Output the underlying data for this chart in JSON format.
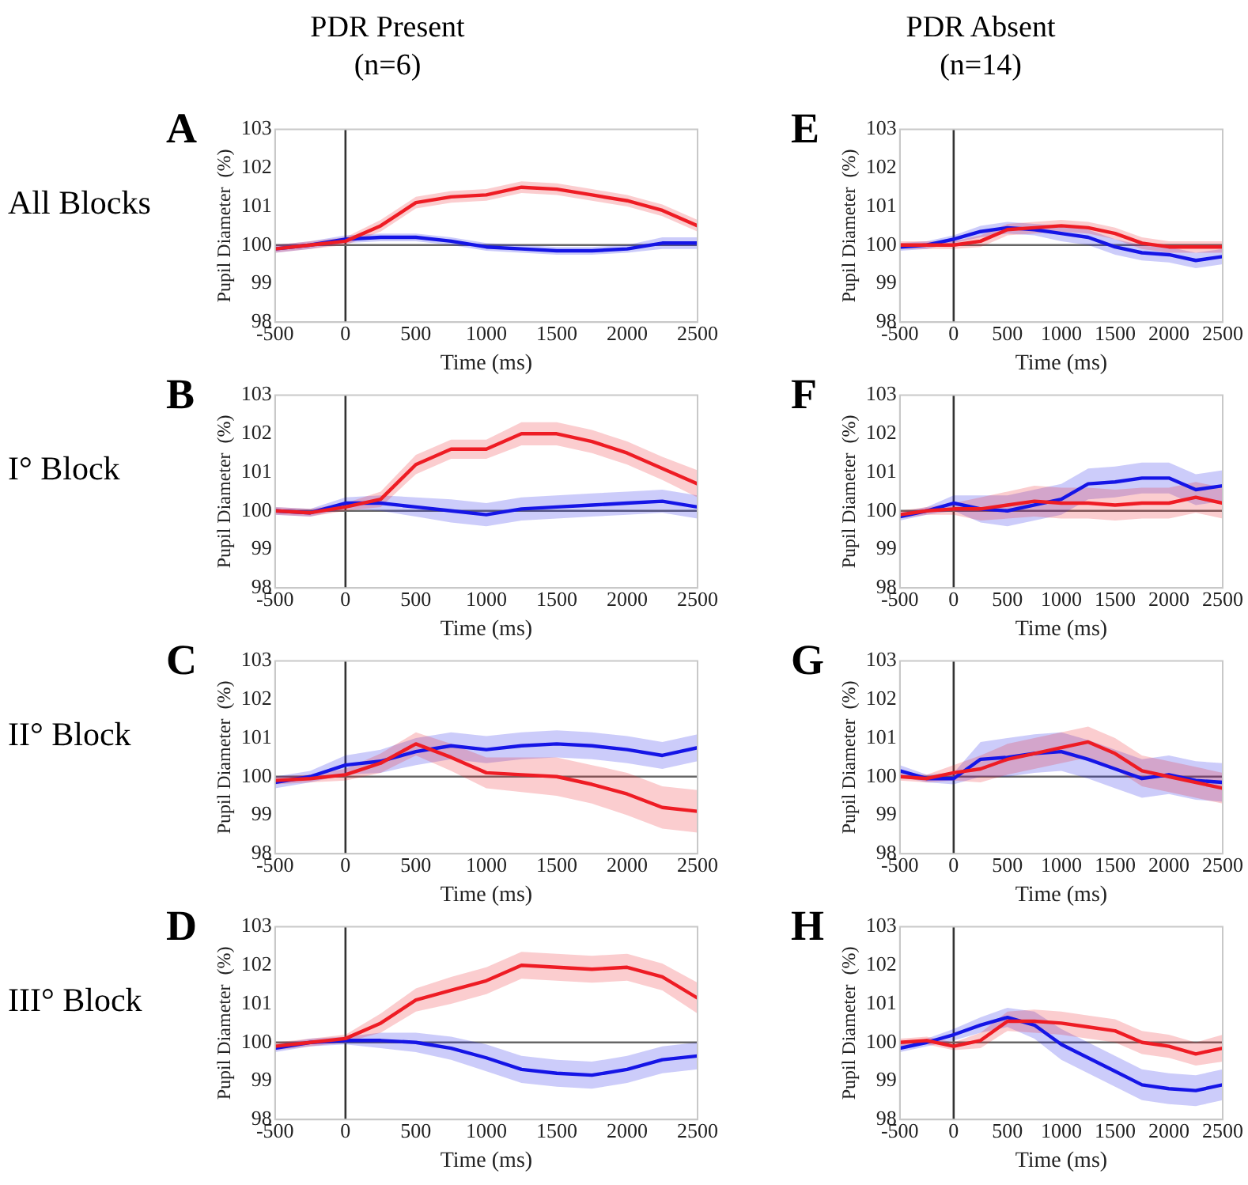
{
  "chart_data": [
    {
      "type": "line",
      "title": "PDR Present (n=6)",
      "annotations": [
        "A",
        "All Blocks"
      ],
      "xlabel": "Time (ms)",
      "ylabel": "Pupil Diameter  (%)",
      "xlim": [
        -500,
        2500
      ],
      "xticks": [
        -500,
        0,
        500,
        1000,
        1500,
        2000,
        2500
      ],
      "ylim": [
        98,
        103
      ],
      "yticks": [
        98,
        99,
        100,
        101,
        102,
        103
      ],
      "grid": false,
      "line_style": "solid",
      "marker": "none",
      "ref_lines": [
        {
          "axis": "x",
          "value": 0,
          "color": "#333333"
        },
        {
          "axis": "y",
          "value": 100,
          "color": "#666666"
        }
      ],
      "x": [
        -500,
        -250,
        0,
        250,
        500,
        750,
        1000,
        1250,
        1500,
        1750,
        2000,
        2250,
        2500
      ],
      "series": [
        {
          "color": "#ee1c24",
          "values": [
            99.9,
            100.0,
            100.1,
            100.5,
            101.1,
            101.25,
            101.3,
            101.5,
            101.45,
            101.3,
            101.15,
            100.9,
            100.5
          ],
          "lower": [
            99.8,
            99.9,
            100.0,
            100.35,
            100.95,
            101.1,
            101.15,
            101.35,
            101.3,
            101.15,
            101.0,
            100.75,
            100.35
          ],
          "upper": [
            100.0,
            100.1,
            100.2,
            100.65,
            101.25,
            101.4,
            101.45,
            101.65,
            101.6,
            101.45,
            101.3,
            101.05,
            100.65
          ]
        },
        {
          "color": "#1515e6",
          "values": [
            99.9,
            100.0,
            100.15,
            100.2,
            100.2,
            100.1,
            99.95,
            99.9,
            99.85,
            99.85,
            99.9,
            100.05,
            100.05
          ],
          "lower": [
            99.8,
            99.9,
            100.05,
            100.1,
            100.1,
            100.0,
            99.85,
            99.8,
            99.75,
            99.75,
            99.8,
            99.9,
            99.9
          ],
          "upper": [
            100.0,
            100.1,
            100.25,
            100.3,
            100.3,
            100.2,
            100.05,
            100.0,
            99.95,
            99.95,
            100.0,
            100.2,
            100.2
          ]
        }
      ]
    },
    {
      "type": "line",
      "title": "PDR Absent (n=14)",
      "annotations": [
        "E"
      ],
      "xlabel": "Time (ms)",
      "ylabel": "Pupil Diameter  (%)",
      "xlim": [
        -500,
        2500
      ],
      "xticks": [
        -500,
        0,
        500,
        1000,
        1500,
        2000,
        2500
      ],
      "ylim": [
        98,
        103
      ],
      "yticks": [
        98,
        99,
        100,
        101,
        102,
        103
      ],
      "grid": false,
      "line_style": "solid",
      "marker": "none",
      "ref_lines": [
        {
          "axis": "x",
          "value": 0,
          "color": "#333333"
        },
        {
          "axis": "y",
          "value": 100,
          "color": "#666666"
        }
      ],
      "x": [
        -500,
        -250,
        0,
        250,
        500,
        750,
        1000,
        1250,
        1500,
        1750,
        2000,
        2250,
        2500
      ],
      "series": [
        {
          "color": "#ee1c24",
          "values": [
            100.0,
            100.0,
            100.0,
            100.1,
            100.4,
            100.45,
            100.5,
            100.45,
            100.3,
            100.05,
            99.95,
            99.95,
            99.95
          ],
          "lower": [
            99.9,
            99.9,
            99.9,
            99.95,
            100.25,
            100.3,
            100.35,
            100.3,
            100.15,
            99.9,
            99.8,
            99.8,
            99.8
          ],
          "upper": [
            100.1,
            100.1,
            100.1,
            100.25,
            100.55,
            100.6,
            100.65,
            100.6,
            100.45,
            100.2,
            100.1,
            100.1,
            100.1
          ]
        },
        {
          "color": "#1515e6",
          "values": [
            99.95,
            100.0,
            100.15,
            100.35,
            100.45,
            100.4,
            100.3,
            100.2,
            99.95,
            99.8,
            99.75,
            99.6,
            99.7
          ],
          "lower": [
            99.85,
            99.9,
            100.05,
            100.2,
            100.3,
            100.25,
            100.1,
            100.0,
            99.75,
            99.6,
            99.55,
            99.4,
            99.5
          ],
          "upper": [
            100.05,
            100.1,
            100.25,
            100.5,
            100.6,
            100.55,
            100.5,
            100.4,
            100.15,
            100.0,
            99.95,
            99.8,
            99.9
          ]
        }
      ]
    },
    {
      "type": "line",
      "annotations": [
        "B",
        "I° Block"
      ],
      "xlabel": "Time (ms)",
      "ylabel": "Pupil Diameter  (%)",
      "xlim": [
        -500,
        2500
      ],
      "xticks": [
        -500,
        0,
        500,
        1000,
        1500,
        2000,
        2500
      ],
      "ylim": [
        98,
        103
      ],
      "yticks": [
        98,
        99,
        100,
        101,
        102,
        103
      ],
      "grid": false,
      "line_style": "solid",
      "marker": "none",
      "ref_lines": [
        {
          "axis": "x",
          "value": 0,
          "color": "#333333"
        },
        {
          "axis": "y",
          "value": 100,
          "color": "#666666"
        }
      ],
      "x": [
        -500,
        -250,
        0,
        250,
        500,
        750,
        1000,
        1250,
        1500,
        1750,
        2000,
        2250,
        2500
      ],
      "series": [
        {
          "color": "#ee1c24",
          "values": [
            100.0,
            99.95,
            100.1,
            100.3,
            101.2,
            101.6,
            101.6,
            102.0,
            102.0,
            101.8,
            101.5,
            101.1,
            100.7
          ],
          "lower": [
            99.9,
            99.85,
            100.0,
            100.1,
            100.95,
            101.35,
            101.35,
            101.7,
            101.7,
            101.5,
            101.2,
            100.8,
            100.35
          ],
          "upper": [
            100.1,
            100.05,
            100.2,
            100.5,
            101.45,
            101.85,
            101.85,
            102.3,
            102.3,
            102.1,
            101.8,
            101.4,
            101.05
          ]
        },
        {
          "color": "#1515e6",
          "values": [
            100.0,
            99.95,
            100.2,
            100.2,
            100.1,
            100.0,
            99.9,
            100.05,
            100.1,
            100.15,
            100.2,
            100.25,
            100.1
          ],
          "lower": [
            99.9,
            99.85,
            100.05,
            100.0,
            99.85,
            99.7,
            99.6,
            99.75,
            99.8,
            99.85,
            99.9,
            99.95,
            99.8
          ],
          "upper": [
            100.1,
            100.05,
            100.35,
            100.4,
            100.35,
            100.3,
            100.2,
            100.35,
            100.4,
            100.45,
            100.5,
            100.55,
            100.4
          ]
        }
      ]
    },
    {
      "type": "line",
      "annotations": [
        "F"
      ],
      "xlabel": "Time (ms)",
      "ylabel": "Pupil Diameter  (%)",
      "xlim": [
        -500,
        2500
      ],
      "xticks": [
        -500,
        0,
        500,
        1000,
        1500,
        2000,
        2500
      ],
      "ylim": [
        98,
        103
      ],
      "yticks": [
        98,
        99,
        100,
        101,
        102,
        103
      ],
      "grid": false,
      "line_style": "solid",
      "marker": "none",
      "ref_lines": [
        {
          "axis": "x",
          "value": 0,
          "color": "#333333"
        },
        {
          "axis": "y",
          "value": 100,
          "color": "#666666"
        }
      ],
      "x": [
        -500,
        -250,
        0,
        250,
        500,
        750,
        1000,
        1250,
        1500,
        1750,
        2000,
        2250,
        2500
      ],
      "series": [
        {
          "color": "#ee1c24",
          "values": [
            99.9,
            100.0,
            100.05,
            100.05,
            100.15,
            100.25,
            100.2,
            100.2,
            100.15,
            100.2,
            100.2,
            100.35,
            100.2
          ],
          "lower": [
            99.8,
            99.9,
            99.9,
            99.75,
            99.8,
            99.85,
            99.8,
            99.8,
            99.75,
            99.8,
            99.8,
            99.95,
            99.8
          ],
          "upper": [
            100.0,
            100.1,
            100.2,
            100.35,
            100.5,
            100.65,
            100.6,
            100.6,
            100.55,
            100.6,
            100.6,
            100.75,
            100.6
          ]
        },
        {
          "color": "#1515e6",
          "values": [
            99.85,
            100.0,
            100.2,
            100.05,
            100.0,
            100.15,
            100.3,
            100.7,
            100.75,
            100.85,
            100.85,
            100.55,
            100.65
          ],
          "lower": [
            99.75,
            99.9,
            100.0,
            99.7,
            99.6,
            99.75,
            99.9,
            100.3,
            100.35,
            100.45,
            100.45,
            100.15,
            100.25
          ],
          "upper": [
            99.95,
            100.1,
            100.4,
            100.4,
            100.4,
            100.55,
            100.7,
            101.1,
            101.15,
            101.25,
            101.25,
            100.95,
            101.05
          ]
        }
      ]
    },
    {
      "type": "line",
      "annotations": [
        "C",
        "II° Block"
      ],
      "xlabel": "Time (ms)",
      "ylabel": "Pupil Diameter  (%)",
      "xlim": [
        -500,
        2500
      ],
      "xticks": [
        -500,
        0,
        500,
        1000,
        1500,
        2000,
        2500
      ],
      "ylim": [
        98,
        103
      ],
      "yticks": [
        98,
        99,
        100,
        101,
        102,
        103
      ],
      "grid": false,
      "line_style": "solid",
      "marker": "none",
      "ref_lines": [
        {
          "axis": "x",
          "value": 0,
          "color": "#333333"
        },
        {
          "axis": "y",
          "value": 100,
          "color": "#666666"
        }
      ],
      "x": [
        -500,
        -250,
        0,
        250,
        500,
        750,
        1000,
        1250,
        1500,
        1750,
        2000,
        2250,
        2500
      ],
      "series": [
        {
          "color": "#ee1c24",
          "values": [
            99.9,
            99.95,
            100.05,
            100.35,
            100.85,
            100.5,
            100.1,
            100.05,
            100.0,
            99.8,
            99.55,
            99.2,
            99.1
          ],
          "lower": [
            99.8,
            99.85,
            99.9,
            100.1,
            100.55,
            100.15,
            99.7,
            99.6,
            99.5,
            99.3,
            99.0,
            98.65,
            98.55
          ],
          "upper": [
            100.0,
            100.05,
            100.2,
            100.6,
            101.15,
            100.85,
            100.5,
            100.5,
            100.5,
            100.3,
            100.1,
            99.75,
            99.65
          ]
        },
        {
          "color": "#1515e6",
          "values": [
            99.85,
            100.0,
            100.3,
            100.4,
            100.65,
            100.8,
            100.7,
            100.8,
            100.85,
            100.8,
            100.7,
            100.55,
            100.75
          ],
          "lower": [
            99.7,
            99.85,
            100.05,
            100.1,
            100.3,
            100.45,
            100.35,
            100.45,
            100.5,
            100.45,
            100.35,
            100.2,
            100.4
          ],
          "upper": [
            100.0,
            100.15,
            100.55,
            100.7,
            101.0,
            101.15,
            101.05,
            101.15,
            101.2,
            101.15,
            101.05,
            100.9,
            101.1
          ]
        }
      ]
    },
    {
      "type": "line",
      "annotations": [
        "G"
      ],
      "xlabel": "Time (ms)",
      "ylabel": "Pupil Diameter  (%)",
      "xlim": [
        -500,
        2500
      ],
      "xticks": [
        -500,
        0,
        500,
        1000,
        1500,
        2000,
        2500
      ],
      "ylim": [
        98,
        103
      ],
      "yticks": [
        98,
        99,
        100,
        101,
        102,
        103
      ],
      "grid": false,
      "line_style": "solid",
      "marker": "none",
      "ref_lines": [
        {
          "axis": "x",
          "value": 0,
          "color": "#333333"
        },
        {
          "axis": "y",
          "value": 100,
          "color": "#666666"
        }
      ],
      "x": [
        -500,
        -250,
        0,
        250,
        500,
        750,
        1000,
        1250,
        1500,
        1750,
        2000,
        2250,
        2500
      ],
      "series": [
        {
          "color": "#ee1c24",
          "values": [
            100.0,
            99.95,
            100.1,
            100.2,
            100.45,
            100.6,
            100.75,
            100.9,
            100.6,
            100.15,
            100.0,
            99.85,
            99.7
          ],
          "lower": [
            99.9,
            99.85,
            99.9,
            99.85,
            100.05,
            100.2,
            100.35,
            100.5,
            100.2,
            99.75,
            99.6,
            99.45,
            99.3
          ],
          "upper": [
            100.1,
            100.05,
            100.3,
            100.55,
            100.85,
            101.0,
            101.15,
            101.3,
            101.0,
            100.55,
            100.4,
            100.25,
            100.1
          ]
        },
        {
          "color": "#1515e6",
          "values": [
            100.15,
            99.95,
            99.95,
            100.45,
            100.5,
            100.6,
            100.65,
            100.45,
            100.2,
            99.95,
            100.05,
            99.9,
            99.85
          ],
          "lower": [
            100.0,
            99.85,
            99.8,
            100.0,
            100.0,
            100.1,
            100.15,
            99.95,
            99.7,
            99.45,
            99.55,
            99.4,
            99.35
          ],
          "upper": [
            100.3,
            100.05,
            100.1,
            100.9,
            101.0,
            101.1,
            101.15,
            100.95,
            100.7,
            100.45,
            100.55,
            100.4,
            100.35
          ]
        }
      ]
    },
    {
      "type": "line",
      "annotations": [
        "D",
        "III° Block"
      ],
      "xlabel": "Time (ms)",
      "ylabel": "Pupil Diameter  (%)",
      "xlim": [
        -500,
        2500
      ],
      "xticks": [
        -500,
        0,
        500,
        1000,
        1500,
        2000,
        2500
      ],
      "ylim": [
        98,
        103
      ],
      "yticks": [
        98,
        99,
        100,
        101,
        102,
        103
      ],
      "grid": false,
      "line_style": "solid",
      "marker": "none",
      "ref_lines": [
        {
          "axis": "x",
          "value": 0,
          "color": "#333333"
        },
        {
          "axis": "y",
          "value": 100,
          "color": "#666666"
        }
      ],
      "x": [
        -500,
        -250,
        0,
        250,
        500,
        750,
        1000,
        1250,
        1500,
        1750,
        2000,
        2250,
        2500
      ],
      "series": [
        {
          "color": "#ee1c24",
          "values": [
            99.9,
            100.0,
            100.1,
            100.5,
            101.1,
            101.35,
            101.6,
            102.0,
            101.95,
            101.9,
            101.95,
            101.7,
            101.15
          ],
          "lower": [
            99.8,
            99.9,
            100.0,
            100.25,
            100.8,
            101.0,
            101.25,
            101.65,
            101.6,
            101.55,
            101.6,
            101.35,
            100.75
          ],
          "upper": [
            100.0,
            100.1,
            100.2,
            100.75,
            101.4,
            101.7,
            101.95,
            102.35,
            102.3,
            102.25,
            102.3,
            102.05,
            101.55
          ]
        },
        {
          "color": "#1515e6",
          "values": [
            99.85,
            100.0,
            100.05,
            100.05,
            100.0,
            99.85,
            99.6,
            99.3,
            99.2,
            99.15,
            99.3,
            99.55,
            99.65
          ],
          "lower": [
            99.75,
            99.9,
            99.95,
            99.85,
            99.75,
            99.55,
            99.25,
            98.95,
            98.85,
            98.8,
            98.95,
            99.2,
            99.3
          ],
          "upper": [
            99.95,
            100.1,
            100.15,
            100.25,
            100.25,
            100.15,
            99.95,
            99.65,
            99.55,
            99.5,
            99.65,
            99.9,
            100.0
          ]
        }
      ]
    },
    {
      "type": "line",
      "annotations": [
        "H"
      ],
      "xlabel": "Time (ms)",
      "ylabel": "Pupil Diameter  (%)",
      "xlim": [
        -500,
        2500
      ],
      "xticks": [
        -500,
        0,
        500,
        1000,
        1500,
        2000,
        2500
      ],
      "ylim": [
        98,
        103
      ],
      "yticks": [
        98,
        99,
        100,
        101,
        102,
        103
      ],
      "grid": false,
      "line_style": "solid",
      "marker": "none",
      "ref_lines": [
        {
          "axis": "x",
          "value": 0,
          "color": "#333333"
        },
        {
          "axis": "y",
          "value": 100,
          "color": "#666666"
        }
      ],
      "x": [
        -500,
        -250,
        0,
        250,
        500,
        750,
        1000,
        1250,
        1500,
        1750,
        2000,
        2250,
        2500
      ],
      "series": [
        {
          "color": "#ee1c24",
          "values": [
            100.0,
            100.05,
            99.9,
            100.05,
            100.55,
            100.55,
            100.5,
            100.4,
            100.3,
            100.0,
            99.9,
            99.7,
            99.85
          ],
          "lower": [
            99.9,
            99.95,
            99.8,
            99.85,
            100.3,
            100.25,
            100.2,
            100.1,
            100.0,
            99.7,
            99.6,
            99.4,
            99.5
          ],
          "upper": [
            100.1,
            100.15,
            100.0,
            100.25,
            100.8,
            100.85,
            100.8,
            100.7,
            100.6,
            100.3,
            100.2,
            100.0,
            100.2
          ]
        },
        {
          "color": "#1515e6",
          "values": [
            99.85,
            100.0,
            100.2,
            100.45,
            100.65,
            100.45,
            99.95,
            99.6,
            99.25,
            98.9,
            98.8,
            98.75,
            98.9
          ],
          "lower": [
            99.75,
            99.9,
            100.05,
            100.25,
            100.4,
            100.1,
            99.55,
            99.2,
            98.85,
            98.5,
            98.4,
            98.35,
            98.5
          ],
          "upper": [
            99.95,
            100.1,
            100.35,
            100.65,
            100.9,
            100.8,
            100.35,
            100.0,
            99.65,
            99.3,
            99.2,
            99.15,
            99.3
          ]
        }
      ]
    }
  ]
}
